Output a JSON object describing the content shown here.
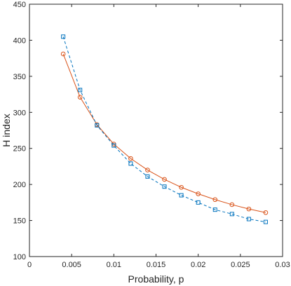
{
  "chart_data": {
    "type": "line",
    "xlabel": "Probability, p",
    "ylabel": "H index",
    "xlim": [
      0,
      0.03
    ],
    "ylim": [
      100,
      450
    ],
    "xticks": [
      "0",
      "0.005",
      "0.01",
      "0.015",
      "0.02",
      "0.025",
      "0.03"
    ],
    "yticks": [
      "100",
      "150",
      "200",
      "250",
      "300",
      "350",
      "400",
      "450"
    ],
    "grid": false,
    "x": [
      0.004,
      0.006,
      0.008,
      0.01,
      0.012,
      0.014,
      0.016,
      0.018,
      0.02,
      0.022,
      0.024,
      0.026,
      0.028
    ],
    "series": [
      {
        "color": "#D95319",
        "marker": "circle",
        "line_style": "solid",
        "values": [
          381,
          321,
          283,
          256,
          236,
          220,
          207,
          196,
          187,
          179,
          172,
          166,
          161
        ]
      },
      {
        "color": "#0072BD",
        "marker": "square",
        "line_style": "dashed",
        "values": [
          405,
          331,
          282,
          254,
          229,
          211,
          197,
          185,
          175,
          165,
          159,
          152,
          148
        ]
      }
    ]
  }
}
